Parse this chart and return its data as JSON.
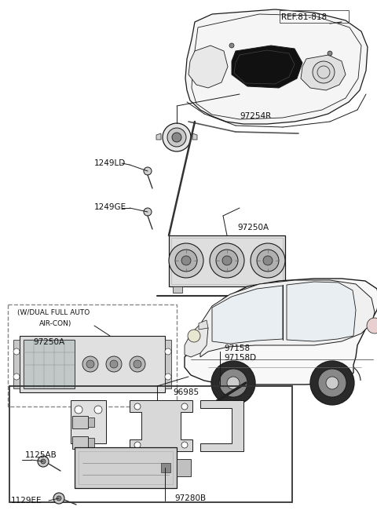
{
  "bg_color": "#ffffff",
  "fig_width": 4.8,
  "fig_height": 6.55,
  "dpi": 100,
  "lc": "#1a1a1a",
  "lc_thin": "#333333",
  "gray_fill": "#e8e8e8",
  "dark_fill": "#111111",
  "labels": {
    "REF.81-818": [
      0.745,
      0.958,
      7.5,
      "left"
    ],
    "97254R": [
      0.335,
      0.878,
      7.5,
      "left"
    ],
    "1249LD": [
      0.125,
      0.838,
      7.5,
      "left"
    ],
    "1249GE": [
      0.125,
      0.775,
      7.5,
      "left"
    ],
    "97250A_1": [
      0.395,
      0.728,
      7.5,
      "left"
    ],
    "97158": [
      0.305,
      0.425,
      7.5,
      "left"
    ],
    "97158D": [
      0.295,
      0.407,
      7.5,
      "left"
    ],
    "96985": [
      0.315,
      0.265,
      7.5,
      "left"
    ],
    "1125AB": [
      0.055,
      0.197,
      7.5,
      "left"
    ],
    "97280B": [
      0.28,
      0.078,
      7.5,
      "left"
    ],
    "1129EE": [
      0.022,
      0.043,
      7.5,
      "left"
    ]
  },
  "dashed_labels": {
    "wdual1": [
      "(W/DUAL FULL AUTO",
      0.032,
      0.652,
      6.5
    ],
    "wdual2": [
      "AIR-CON)",
      0.085,
      0.632,
      6.5
    ],
    "97250A_2": [
      "97250A",
      0.07,
      0.597,
      7.5
    ]
  }
}
